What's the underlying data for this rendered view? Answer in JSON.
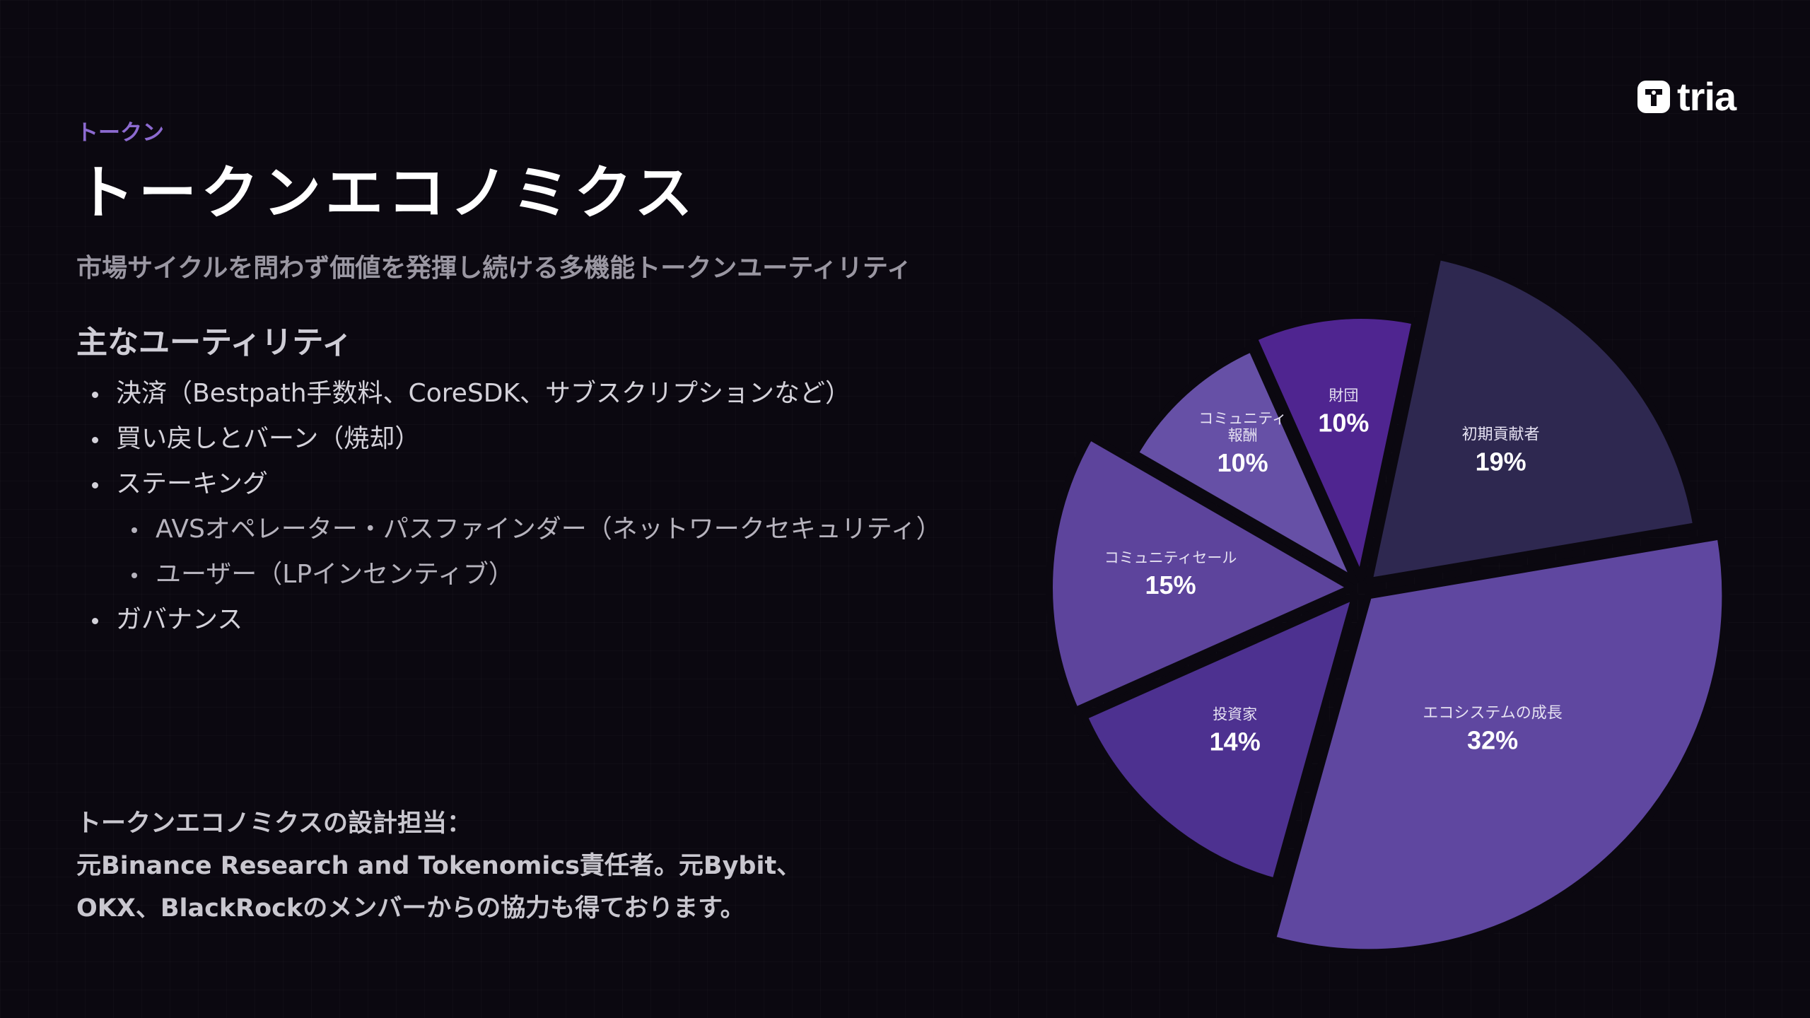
{
  "brand": {
    "name": "tria"
  },
  "eyebrow": "トークン",
  "title": "トークンエコノミクス",
  "subtitle": "市場サイクルを問わず価値を発揮し続ける多機能トークンユーティリティ",
  "section_heading": "主なユーティリティ",
  "utilities": [
    {
      "text": "決済（Bestpath手数料、CoreSDK、サブスクリプションなど）",
      "level": 1
    },
    {
      "text": "買い戻しとバーン（焼却）",
      "level": 1
    },
    {
      "text": "ステーキング",
      "level": 1
    },
    {
      "text": "AVSオペレーター・パスファインダー（ネットワークセキュリティ）",
      "level": 2
    },
    {
      "text": "ユーザー（LPインセンティブ）",
      "level": 2
    },
    {
      "text": "ガバナンス",
      "level": 1
    }
  ],
  "note": {
    "heading": "トークンエコノミクスの設計担当：",
    "line1": "元Binance Research and Tokenomics責任者。元Bybit、",
    "line2": "OKX、BlackRockのメンバーからの協力も得ております。"
  },
  "colors": {
    "background": "#0b0810",
    "accent": "#8c6ad0"
  },
  "chart_data": {
    "type": "pie",
    "categories": [
      "初期貢献者",
      "エコシステムの成長",
      "投資家",
      "コミュニティセール",
      "コミュニティ報酬",
      "財団"
    ],
    "values": [
      19,
      32,
      14,
      15,
      10,
      10
    ],
    "labels": [
      "19%",
      "32%",
      "14%",
      "15%",
      "10%",
      "10%"
    ],
    "colors": [
      "#2e2850",
      "#5f47a0",
      "#4d3190",
      "#5d449c",
      "#6650a6",
      "#4f2590"
    ],
    "exploded": true
  }
}
